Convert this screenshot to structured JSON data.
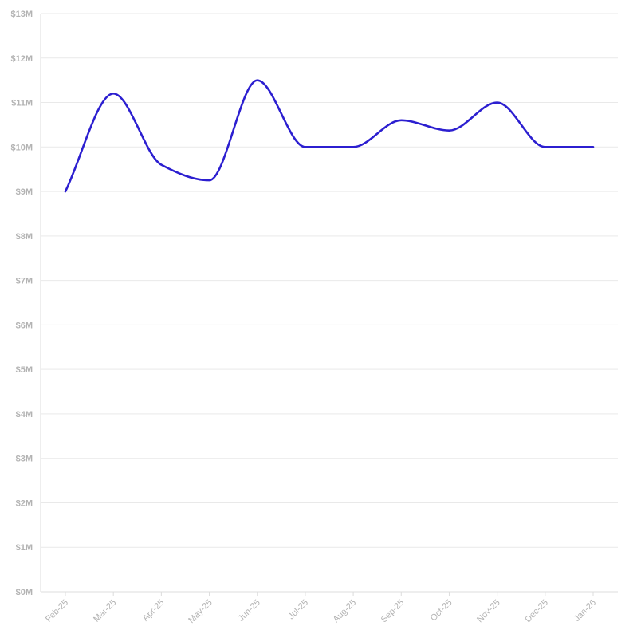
{
  "chart_data": {
    "type": "line",
    "title": "",
    "xlabel": "",
    "ylabel": "",
    "categories": [
      "Feb-25",
      "Mar-25",
      "Apr-25",
      "May-25",
      "Jun-25",
      "Jul-25",
      "Aug-25",
      "Sep-25",
      "Oct-25",
      "Nov-25",
      "Dec-25",
      "Jan-26"
    ],
    "series": [
      {
        "values": [
          9.0,
          11.2,
          9.6,
          9.25,
          11.5,
          10.0,
          10.0,
          10.6,
          10.37,
          11.0,
          10.0,
          10.0
        ],
        "color": "#2c1fd0"
      }
    ],
    "ylim": [
      0,
      13
    ],
    "y_ticks": [
      {
        "value": 0,
        "label": "$0M"
      },
      {
        "value": 1,
        "label": "$1M"
      },
      {
        "value": 2,
        "label": "$2M"
      },
      {
        "value": 3,
        "label": "$3M"
      },
      {
        "value": 4,
        "label": "$4M"
      },
      {
        "value": 5,
        "label": "$5M"
      },
      {
        "value": 6,
        "label": "$6M"
      },
      {
        "value": 7,
        "label": "$7M"
      },
      {
        "value": 8,
        "label": "$8M"
      },
      {
        "value": 9,
        "label": "$9M"
      },
      {
        "value": 10,
        "label": "$10M"
      },
      {
        "value": 11,
        "label": "$11M"
      },
      {
        "value": 12,
        "label": "$12M"
      },
      {
        "value": 13,
        "label": "$13M"
      }
    ],
    "grid": true,
    "legend": "none",
    "smooth": true
  }
}
